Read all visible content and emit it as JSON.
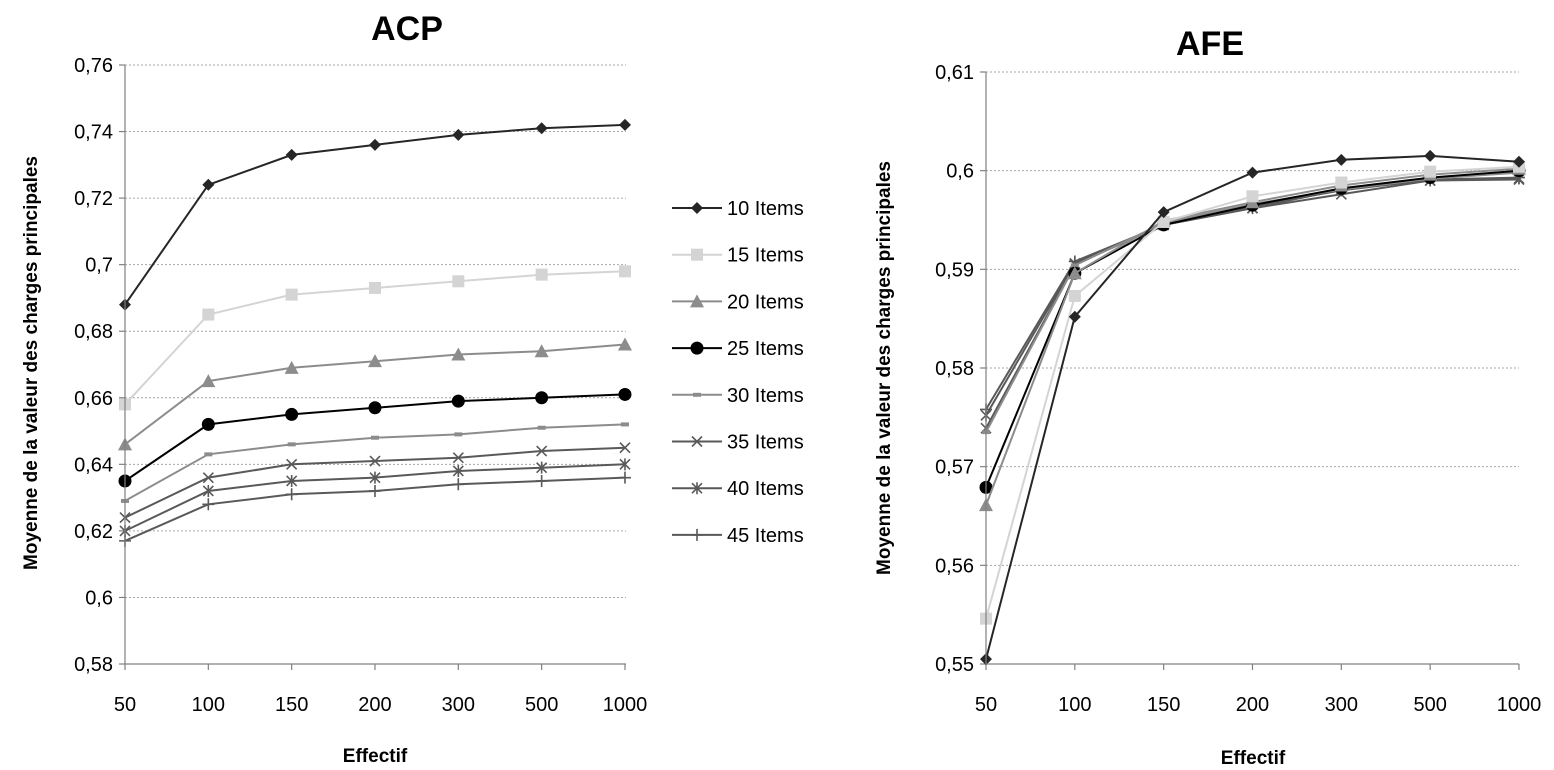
{
  "charts": {
    "items": [
      {
        "title": "ACP",
        "xlabel": "Effectif",
        "ylabel": "Moyenne de la valeur des charges principales",
        "ytick_labels": [
          "0,58",
          "0,6",
          "0,62",
          "0,64",
          "0,66",
          "0,68",
          "0,7",
          "0,72",
          "0,74",
          "0,76"
        ]
      },
      {
        "title": "AFE",
        "xlabel": "Effectif",
        "ylabel": "Moyenne de la valeur des charges principales",
        "ytick_labels": [
          "0,55",
          "0,56",
          "0,57",
          "0,58",
          "0,59",
          "0,6",
          "0,61"
        ]
      }
    ]
  },
  "legend": {
    "items": [
      "10 Items",
      "15 Items",
      "20 Items",
      "25 Items",
      "30 Items",
      "35 Items",
      "40 Items",
      "45 Items"
    ],
    "placement": "right of ACP chart"
  },
  "series_style": [
    {
      "color": "#262626",
      "marker": "diamond"
    },
    {
      "color": "#d4d4d4",
      "marker": "square"
    },
    {
      "color": "#8c8c8c",
      "marker": "triangle"
    },
    {
      "color": "#000000",
      "marker": "circle"
    },
    {
      "color": "#8c8c8c",
      "marker": "dash"
    },
    {
      "color": "#595959",
      "marker": "x"
    },
    {
      "color": "#595959",
      "marker": "star"
    },
    {
      "color": "#595959",
      "marker": "plus"
    }
  ],
  "chart_data": [
    {
      "type": "line",
      "title": "ACP",
      "xlabel": "Effectif",
      "ylabel": "Moyenne de la valeur des charges principales",
      "categories": [
        "50",
        "100",
        "150",
        "200",
        "300",
        "500",
        "1000"
      ],
      "ylim": [
        0.58,
        0.76
      ],
      "ytick_step": 0.02,
      "grid": true,
      "legend": "right",
      "series": [
        {
          "name": "10 Items",
          "values": [
            0.688,
            0.724,
            0.733,
            0.736,
            0.739,
            0.741,
            0.742
          ]
        },
        {
          "name": "15 Items",
          "values": [
            0.658,
            0.685,
            0.691,
            0.693,
            0.695,
            0.697,
            0.698
          ]
        },
        {
          "name": "20 Items",
          "values": [
            0.646,
            0.665,
            0.669,
            0.671,
            0.673,
            0.674,
            0.676
          ]
        },
        {
          "name": "25 Items",
          "values": [
            0.635,
            0.652,
            0.655,
            0.657,
            0.659,
            0.66,
            0.661
          ]
        },
        {
          "name": "30 Items",
          "values": [
            0.629,
            0.643,
            0.646,
            0.648,
            0.649,
            0.651,
            0.652
          ]
        },
        {
          "name": "35 Items",
          "values": [
            0.624,
            0.636,
            0.64,
            0.641,
            0.642,
            0.644,
            0.645
          ]
        },
        {
          "name": "40 Items",
          "values": [
            0.62,
            0.632,
            0.635,
            0.636,
            0.638,
            0.639,
            0.64
          ]
        },
        {
          "name": "45 Items",
          "values": [
            0.617,
            0.628,
            0.631,
            0.632,
            0.634,
            0.635,
            0.636
          ]
        }
      ]
    },
    {
      "type": "line",
      "title": "AFE",
      "xlabel": "Effectif",
      "ylabel": "Moyenne de la valeur des charges principales",
      "categories": [
        "50",
        "100",
        "150",
        "200",
        "300",
        "500",
        "1000"
      ],
      "ylim": [
        0.55,
        0.61
      ],
      "ytick_step": 0.01,
      "grid": true,
      "series": [
        {
          "name": "10 Items",
          "values": [
            0.5505,
            0.5852,
            0.5958,
            0.5998,
            0.6011,
            0.6015,
            0.6009
          ]
        },
        {
          "name": "15 Items",
          "values": [
            0.5546,
            0.5873,
            0.5948,
            0.5974,
            0.5988,
            0.5999,
            0.6004
          ]
        },
        {
          "name": "20 Items",
          "values": [
            0.5661,
            0.5896,
            0.5949,
            0.5968,
            0.5985,
            0.5996,
            0.6002
          ]
        },
        {
          "name": "25 Items",
          "values": [
            0.5679,
            0.5896,
            0.5945,
            0.5965,
            0.5982,
            0.5993,
            0.6
          ]
        },
        {
          "name": "30 Items",
          "values": [
            0.5735,
            0.5904,
            0.5947,
            0.5966,
            0.5981,
            0.5992,
            0.5998
          ]
        },
        {
          "name": "35 Items",
          "values": [
            0.5739,
            0.5905,
            0.5945,
            0.5962,
            0.5976,
            0.599,
            0.5991
          ]
        },
        {
          "name": "40 Items",
          "values": [
            0.5752,
            0.5906,
            0.5945,
            0.5962,
            0.5981,
            0.599,
            0.5992
          ]
        },
        {
          "name": "45 Items",
          "values": [
            0.5758,
            0.5908,
            0.5945,
            0.5964,
            0.598,
            0.5991,
            0.5993
          ]
        }
      ]
    }
  ]
}
